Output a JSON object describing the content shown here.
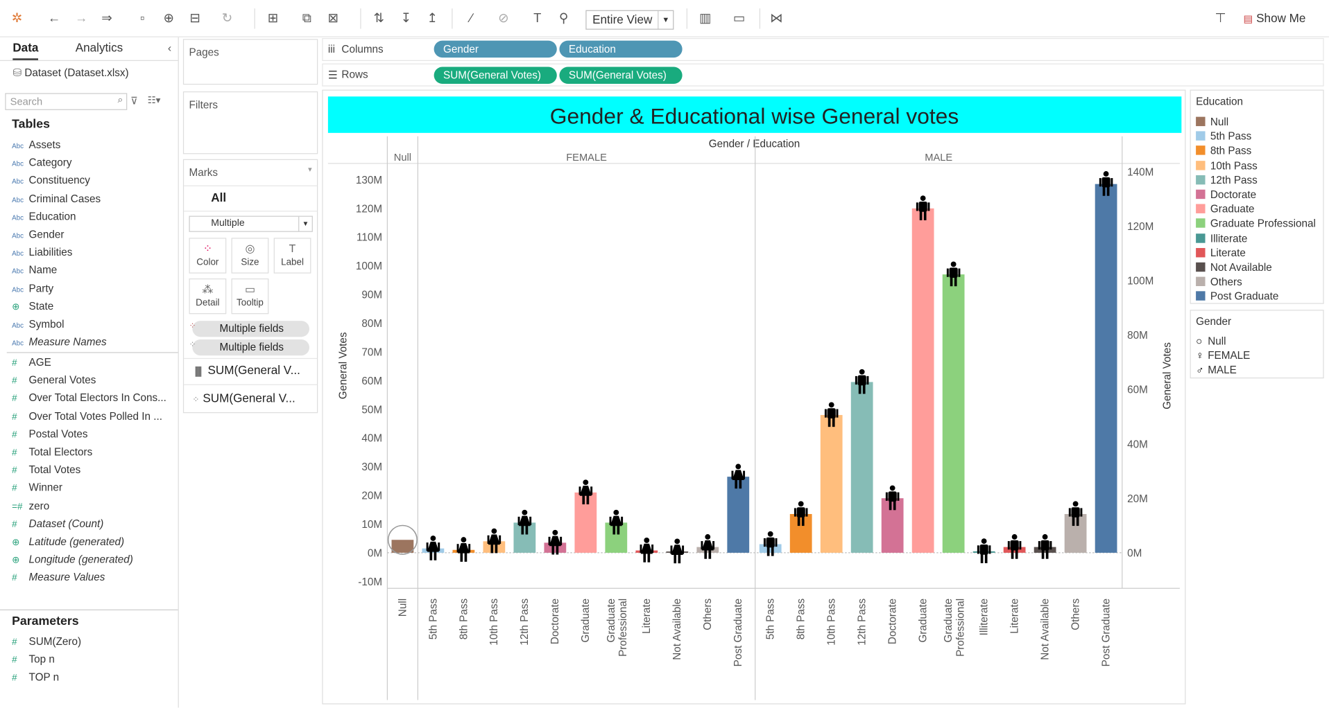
{
  "toolbar": {
    "view_select": "Entire View",
    "show_me": "Show Me"
  },
  "sidebar": {
    "tabs": [
      {
        "label": "Data"
      },
      {
        "label": "Analytics"
      }
    ],
    "datasource": "Dataset (Dataset.xlsx)",
    "search_placeholder": "Search",
    "tables_header": "Tables",
    "dimensions": [
      {
        "label": "Assets",
        "icon": "Abc",
        "italic": false
      },
      {
        "label": "Category",
        "icon": "Abc",
        "italic": false
      },
      {
        "label": "Constituency",
        "icon": "Abc",
        "italic": false
      },
      {
        "label": "Criminal Cases",
        "icon": "Abc",
        "italic": false
      },
      {
        "label": "Education",
        "icon": "Abc",
        "italic": false
      },
      {
        "label": "Gender",
        "icon": "Abc",
        "italic": false
      },
      {
        "label": "Liabilities",
        "icon": "Abc",
        "italic": false
      },
      {
        "label": "Name",
        "icon": "Abc",
        "italic": false
      },
      {
        "label": "Party",
        "icon": "Abc",
        "italic": false
      },
      {
        "label": "State",
        "icon": "globe",
        "italic": false
      },
      {
        "label": "Symbol",
        "icon": "Abc",
        "italic": false
      },
      {
        "label": "Measure Names",
        "icon": "Abc",
        "italic": true
      }
    ],
    "measures": [
      {
        "label": "AGE",
        "icon": "#",
        "italic": false
      },
      {
        "label": "General Votes",
        "icon": "#",
        "italic": false
      },
      {
        "label": "Over Total Electors  In Cons...",
        "icon": "#",
        "italic": false
      },
      {
        "label": "Over Total Votes Polled  In ...",
        "icon": "#",
        "italic": false
      },
      {
        "label": "Postal Votes",
        "icon": "#",
        "italic": false
      },
      {
        "label": "Total Electors",
        "icon": "#",
        "italic": false
      },
      {
        "label": "Total Votes",
        "icon": "#",
        "italic": false
      },
      {
        "label": "Winner",
        "icon": "#",
        "italic": false
      },
      {
        "label": "zero",
        "icon": "=#",
        "italic": false
      },
      {
        "label": "Dataset (Count)",
        "icon": "#",
        "italic": true
      },
      {
        "label": "Latitude (generated)",
        "icon": "globe",
        "italic": true
      },
      {
        "label": "Longitude (generated)",
        "icon": "globe",
        "italic": true
      },
      {
        "label": "Measure Values",
        "icon": "#",
        "italic": true
      }
    ],
    "parameters_header": "Parameters",
    "parameters": [
      {
        "label": "SUM(Zero)"
      },
      {
        "label": "Top n"
      },
      {
        "label": "TOP n"
      }
    ]
  },
  "cards": {
    "pages": "Pages",
    "filters": "Filters",
    "marks": "Marks",
    "marks_all": "All",
    "mark_type": "Multiple",
    "buttons": [
      {
        "label": "Color",
        "icon": "color-icon"
      },
      {
        "label": "Size",
        "icon": "size-icon"
      },
      {
        "label": "Label",
        "icon": "label-icon"
      },
      {
        "label": "Detail",
        "icon": "detail-icon"
      },
      {
        "label": "Tooltip",
        "icon": "tooltip-icon"
      }
    ],
    "fields": [
      "Multiple fields",
      "Multiple fields"
    ],
    "sub_cards": [
      "SUM(General V...",
      "SUM(General V..."
    ]
  },
  "shelves": {
    "columns_label": "Columns",
    "rows_label": "Rows",
    "columns": [
      "Gender",
      "Education"
    ],
    "rows": [
      "SUM(General Votes)",
      "SUM(General Votes)"
    ]
  },
  "legends": {
    "education_title": "Education",
    "education": [
      {
        "label": "Null",
        "color": "#9c755f"
      },
      {
        "label": "5th Pass",
        "color": "#a0cbe8"
      },
      {
        "label": "8th Pass",
        "color": "#f28e2b"
      },
      {
        "label": "10th Pass",
        "color": "#ffbe7d"
      },
      {
        "label": "12th Pass",
        "color": "#86bcb6"
      },
      {
        "label": "Doctorate",
        "color": "#d37295"
      },
      {
        "label": "Graduate",
        "color": "#ff9d9a"
      },
      {
        "label": "Graduate Professional",
        "color": "#8cd17d"
      },
      {
        "label": "Illiterate",
        "color": "#499894"
      },
      {
        "label": "Literate",
        "color": "#e15759"
      },
      {
        "label": "Not Available",
        "color": "#59504e"
      },
      {
        "label": "Others",
        "color": "#bab0ac"
      },
      {
        "label": "Post Graduate",
        "color": "#4e79a7"
      }
    ],
    "gender_title": "Gender",
    "gender": [
      {
        "label": "Null",
        "icon": "circle-icon"
      },
      {
        "label": "FEMALE",
        "icon": "female-icon"
      },
      {
        "label": "MALE",
        "icon": "male-icon"
      }
    ]
  },
  "chart_data": {
    "type": "bar",
    "title": "Gender & Educational wise General votes",
    "header": "Gender  /  Education",
    "ylabel": "General Votes",
    "ylim": [
      -10,
      130
    ],
    "y_ticks": [
      "-10M",
      "0M",
      "10M",
      "20M",
      "30M",
      "40M",
      "50M",
      "60M",
      "70M",
      "80M",
      "90M",
      "100M",
      "110M",
      "120M",
      "130M"
    ],
    "y2_ticks": [
      "0M",
      "20M",
      "40M",
      "60M",
      "80M",
      "100M",
      "120M",
      "140M"
    ],
    "unit": "M",
    "panes": [
      {
        "gender": "Null",
        "categories": [
          "Null"
        ],
        "values": [
          4.5
        ]
      },
      {
        "gender": "FEMALE",
        "categories": [
          "5th Pass",
          "8th Pass",
          "10th Pass",
          "12th Pass",
          "Doctorate",
          "Graduate",
          "Graduate Professional",
          "Literate",
          "Not Available",
          "Others",
          "Post Graduate"
        ],
        "values": [
          1.5,
          1,
          4,
          10.5,
          3.5,
          21,
          10.5,
          0.8,
          0.1,
          2,
          26.5
        ]
      },
      {
        "gender": "MALE",
        "categories": [
          "5th Pass",
          "8th Pass",
          "10th Pass",
          "12th Pass",
          "Doctorate",
          "Graduate",
          "Graduate Professional",
          "Illiterate",
          "Literate",
          "Not Available",
          "Others",
          "Post Graduate"
        ],
        "values": [
          3,
          13.5,
          48,
          59.5,
          19,
          120,
          97,
          0.5,
          2,
          2,
          13.5,
          128.5
        ]
      }
    ]
  }
}
